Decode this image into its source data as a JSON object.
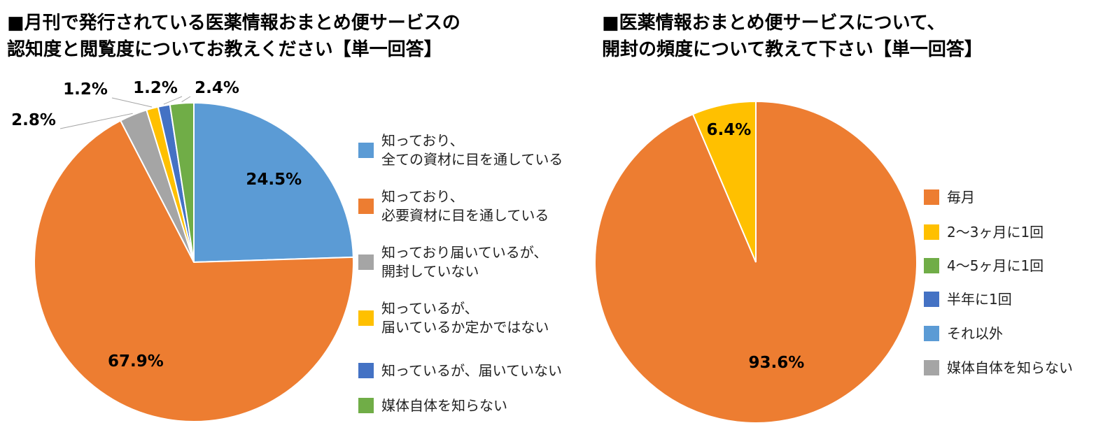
{
  "chart_data": [
    {
      "type": "pie",
      "title": "■月刊で発行されている医薬情報おまとめ便サービスの\n認知度と閲覧度についてお教えください【単一回答】",
      "categories": [
        "知っており、\n全ての資材に目を通している",
        "知っており、\n必要資材に目を通している",
        "知っており届いているが、\n開封していない",
        "知っているが、\n届いているか定かではない",
        "知っているが、届いていない",
        "媒体自体を知らない"
      ],
      "values": [
        24.5,
        67.9,
        2.8,
        1.2,
        1.2,
        2.4
      ],
      "value_labels": [
        "24.5%",
        "67.9%",
        "2.8%",
        "1.2%",
        "1.2%",
        "2.4%"
      ],
      "colors": [
        "#5b9bd5",
        "#ed7d31",
        "#a5a5a5",
        "#ffc000",
        "#4472c4",
        "#70ad47"
      ],
      "legend": "right"
    },
    {
      "type": "pie",
      "title": "■医薬情報おまとめ便サービスについて、\n開封の頻度について教えて下さい【単一回答】",
      "categories": [
        "毎月",
        "2～3ヶ月に1回",
        "4～5ヶ月に1回",
        "半年に1回",
        "それ以外",
        "媒体自体を知らない"
      ],
      "values": [
        93.6,
        6.4,
        0,
        0,
        0,
        0
      ],
      "value_labels": [
        "93.6%",
        "6.4%",
        null,
        null,
        null,
        null
      ],
      "colors": [
        "#ed7d31",
        "#ffc000",
        "#70ad47",
        "#4472c4",
        "#5b9bd5",
        "#a5a5a5"
      ],
      "legend": "right"
    }
  ]
}
